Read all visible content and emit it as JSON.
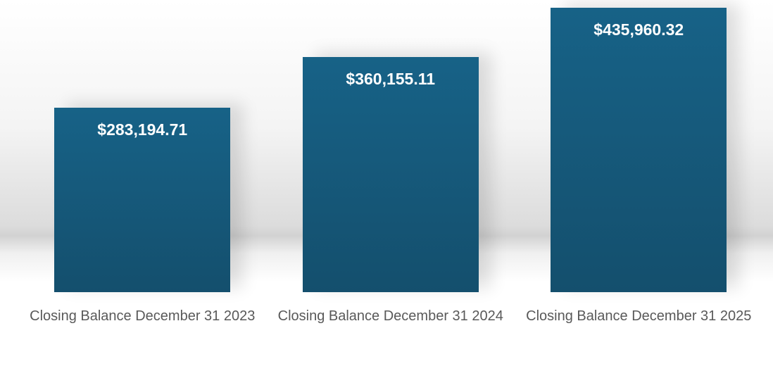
{
  "chart_data": {
    "type": "bar",
    "categories": [
      "Closing Balance December 31 2023",
      "Closing Balance December 31 2024",
      "Closing Balance December 31 2025"
    ],
    "values": [
      283194.71,
      360155.11,
      435960.32
    ],
    "value_labels": [
      "$283,194.71",
      "$360,155.11",
      "$435,960.32"
    ],
    "color": "#176287"
  }
}
